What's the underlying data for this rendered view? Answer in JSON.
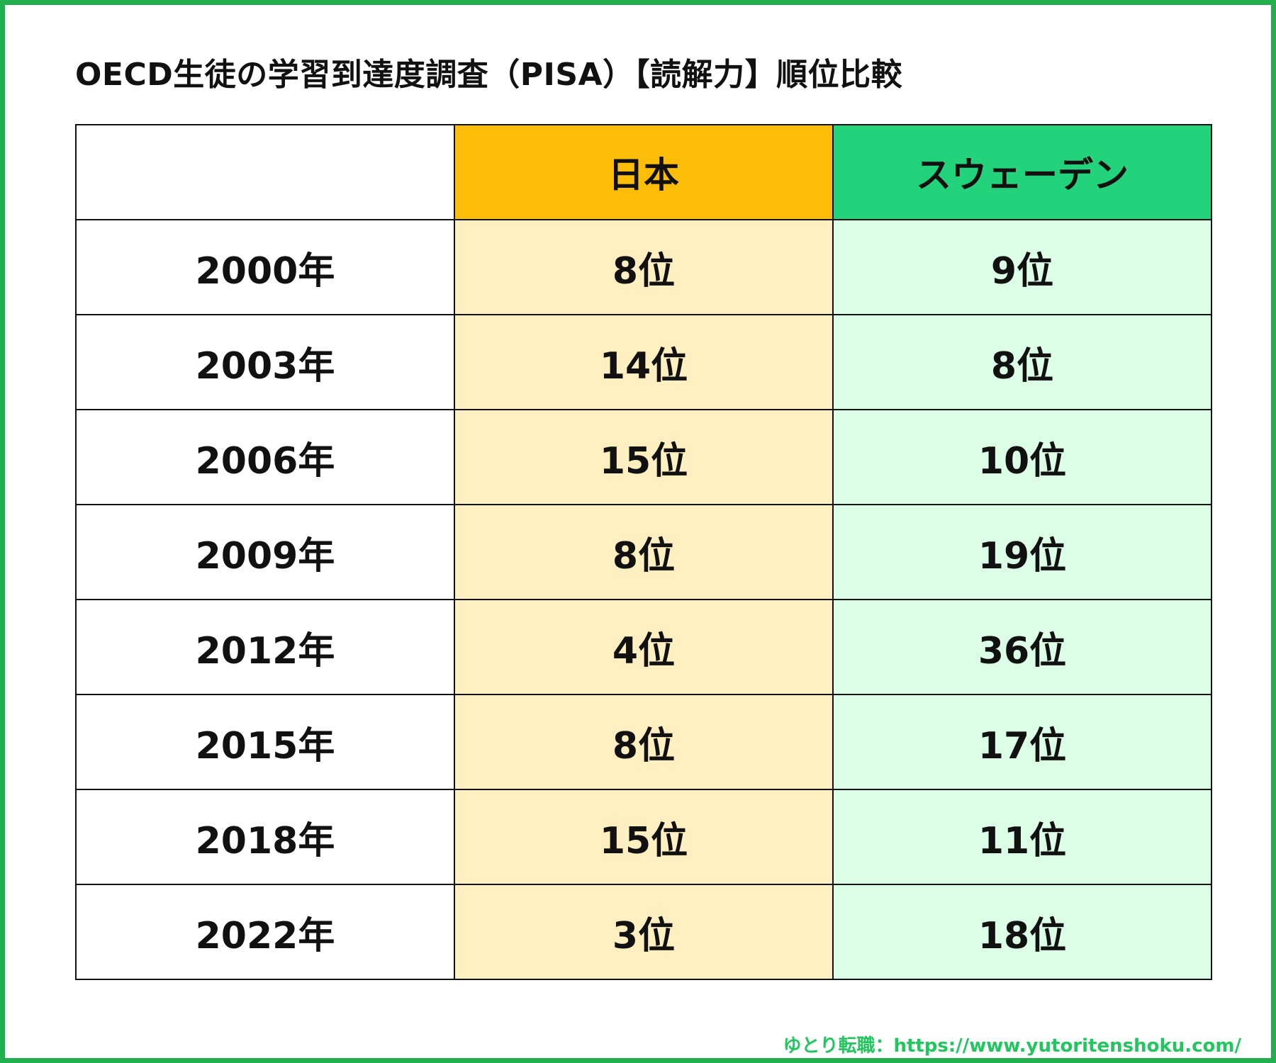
{
  "title": "OECD生徒の学習到達度調査（PISA）【読解力】順位比較",
  "footer": "ゆとり転職：https://www.yutoritenshoku.com/",
  "colors": {
    "border": "#22b04e",
    "japan_header": "#fbbd08",
    "japan_cell": "#ffefc1",
    "sweden_header": "#22d37c",
    "sweden_cell": "#dcfde6",
    "footer_text": "#22c55e"
  },
  "chart_data": {
    "type": "table",
    "columns": [
      "",
      "日本",
      "スウェーデン"
    ],
    "rows": [
      {
        "year": "2000年",
        "japan": "8位",
        "sweden": "9位"
      },
      {
        "year": "2003年",
        "japan": "14位",
        "sweden": "8位"
      },
      {
        "year": "2006年",
        "japan": "15位",
        "sweden": "10位"
      },
      {
        "year": "2009年",
        "japan": "8位",
        "sweden": "19位"
      },
      {
        "year": "2012年",
        "japan": "4位",
        "sweden": "36位"
      },
      {
        "year": "2015年",
        "japan": "8位",
        "sweden": "17位"
      },
      {
        "year": "2018年",
        "japan": "15位",
        "sweden": "11位"
      },
      {
        "year": "2022年",
        "japan": "3位",
        "sweden": "18位"
      }
    ]
  }
}
